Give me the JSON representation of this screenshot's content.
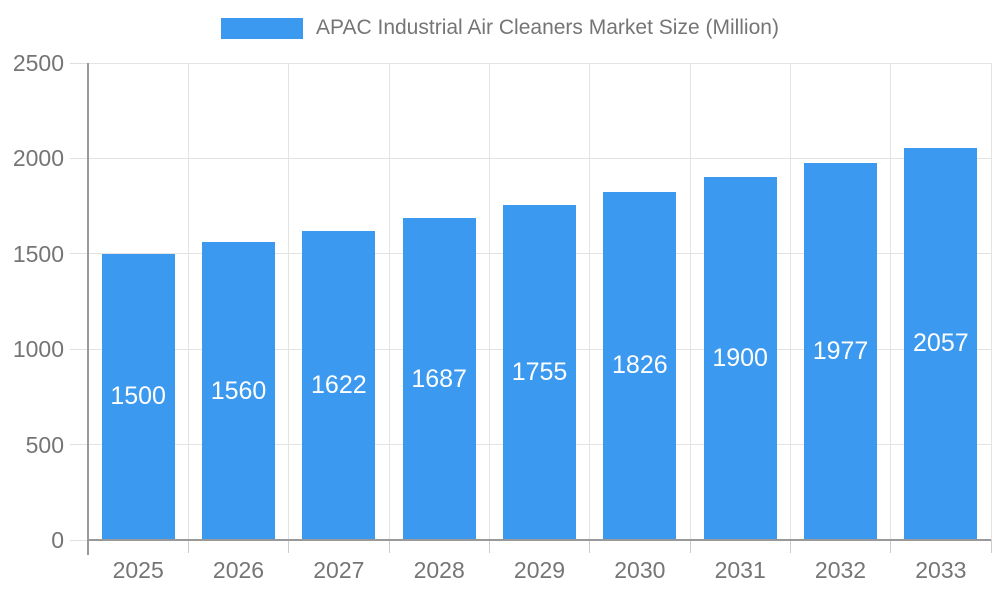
{
  "legend": {
    "label": "APAC Industrial Air Cleaners Market Size (Million)"
  },
  "colors": {
    "bar": "#3B99EF",
    "axis_line": "#999999",
    "grid_line": "#E3E3E3",
    "y_tick": "#E0E0E0",
    "x_tick": "#CCCCCC",
    "axis_text": "#757575",
    "value_text": "#FFFFFF",
    "background": "#FFFFFF"
  },
  "chart_data": {
    "type": "bar",
    "title": "APAC Industrial Air Cleaners Market Size (Million)",
    "categories": [
      "2025",
      "2026",
      "2027",
      "2028",
      "2029",
      "2030",
      "2031",
      "2032",
      "2033"
    ],
    "values": [
      1500,
      1560,
      1622,
      1687,
      1755,
      1826,
      1900,
      1977,
      2057
    ],
    "xlabel": "",
    "ylabel": "",
    "ylim": [
      0,
      2500
    ],
    "yticks": [
      0,
      500,
      1000,
      1500,
      2000,
      2500
    ],
    "grid": true,
    "legend_position": "top-center",
    "value_label_position": "inside-center"
  }
}
